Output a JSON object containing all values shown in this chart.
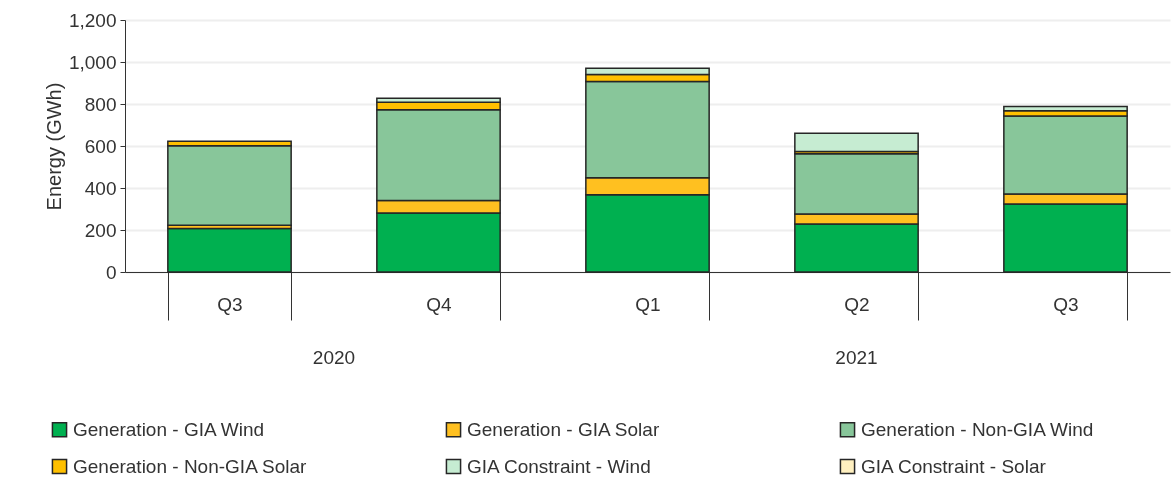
{
  "chart_data": {
    "type": "bar",
    "stacked": true,
    "ylabel": "Energy (GWh)",
    "categories": [
      "Q3",
      "Q4",
      "Q1",
      "Q2",
      "Q3"
    ],
    "annotations": [
      "2020",
      "2021"
    ],
    "series": [
      {
        "name": "Generation - GIA Wind",
        "color": "#00b050",
        "values": [
          207,
          281,
          368,
          228,
          324
        ]
      },
      {
        "name": "Generation - GIA Solar",
        "color": "#ffc020",
        "values": [
          16,
          59,
          81,
          48,
          48
        ]
      },
      {
        "name": "Generation - Non-GIA Wind",
        "color": "#88c69a",
        "values": [
          378,
          433,
          458,
          287,
          371
        ]
      },
      {
        "name": "Generation - Non-GIA Solar",
        "color": "#ffc000",
        "values": [
          22,
          35,
          33,
          11,
          25
        ]
      },
      {
        "name": "GIA Constraint - Wind",
        "color": "#c6ecd2",
        "values": [
          null,
          19,
          30,
          87,
          20
        ]
      },
      {
        "name": "GIA Constraint - Solar",
        "color": "#fff0c0",
        "values": [
          null,
          null,
          null,
          null,
          null
        ]
      }
    ],
    "ylim": [
      0,
      1200
    ],
    "yticks": [
      0,
      200,
      400,
      600,
      800,
      {
        "value": 1000,
        "label": "1,000"
      },
      {
        "value": 1200,
        "label": "1,200"
      }
    ],
    "grid": "y",
    "legend": "bottom"
  }
}
